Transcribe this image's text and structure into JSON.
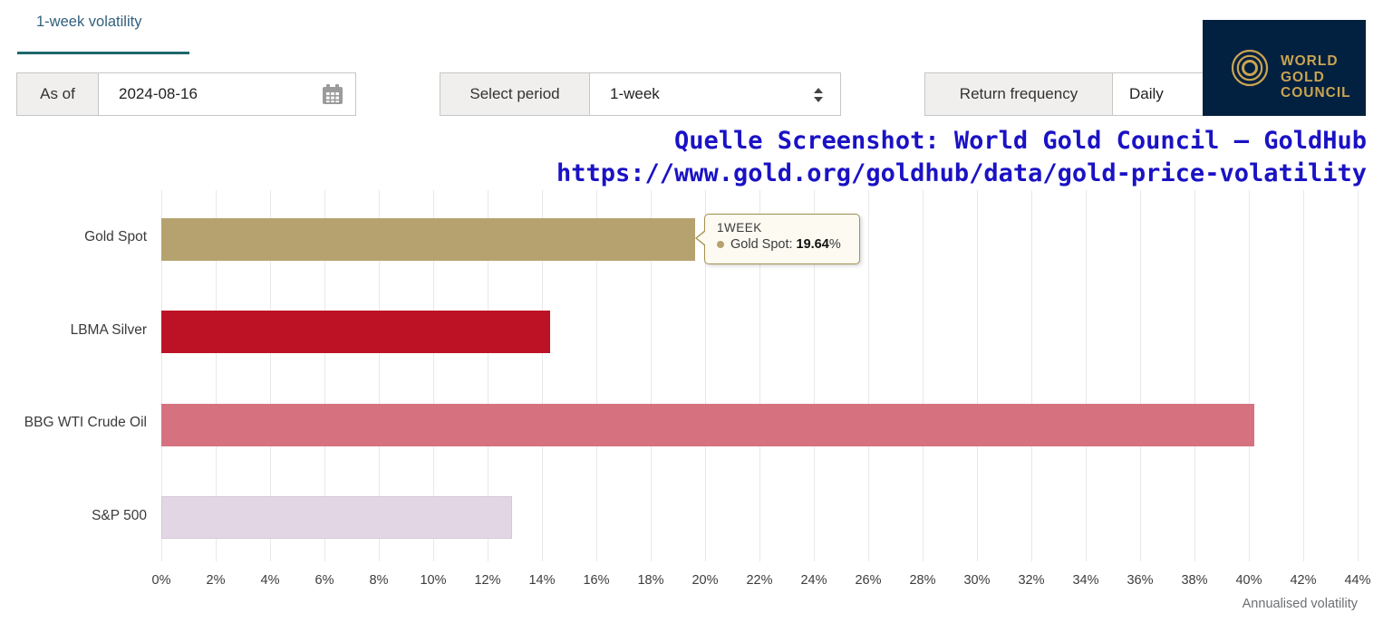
{
  "tab": {
    "label": "1-week volatility",
    "accent_color": "#1f686d"
  },
  "controls": {
    "as_of": {
      "label": "As of",
      "value": "2024-08-16",
      "icon": "calendar-icon"
    },
    "period": {
      "label": "Select period",
      "value": "1-week",
      "icon": "updown-arrows-icon"
    },
    "frequency": {
      "label": "Return frequency",
      "value": "Daily"
    }
  },
  "logo": {
    "lines": [
      "WORLD",
      "GOLD",
      "COUNCIL"
    ],
    "bg_color": "#02203f",
    "gold_color": "#c9a452",
    "icon": "concentric-circles-icon"
  },
  "watermark": {
    "line1": "Quelle Screenshot: World Gold Council — GoldHub",
    "line2": "https://www.gold.org/goldhub/data/gold-price-volatility",
    "color": "#1a12c4"
  },
  "tooltip": {
    "title": "1WEEK",
    "series": "Gold Spot:",
    "value": "19.64",
    "suffix": "%"
  },
  "chart_data": {
    "type": "bar",
    "orientation": "horizontal",
    "categories": [
      "Gold Spot",
      "LBMA Silver",
      "BBG WTI Crude Oil",
      "S&P 500"
    ],
    "values": [
      19.64,
      14.3,
      40.2,
      12.9
    ],
    "colors": [
      "#b5a26e",
      "#bd1226",
      "#d6727f",
      "#e2d6e4"
    ],
    "bar_borders": [
      null,
      null,
      null,
      "#d9c6d6"
    ],
    "title": "",
    "xlabel": "Annualised volatility",
    "ylabel": "",
    "xlim": [
      0,
      44
    ],
    "x_ticks": [
      "0%",
      "2%",
      "4%",
      "6%",
      "8%",
      "10%",
      "12%",
      "14%",
      "16%",
      "18%",
      "20%",
      "22%",
      "24%",
      "26%",
      "28%",
      "30%",
      "32%",
      "34%",
      "36%",
      "38%",
      "40%",
      "42%",
      "44%"
    ],
    "grid": true,
    "legend": false,
    "gridline_color": "#e8e8e8"
  }
}
